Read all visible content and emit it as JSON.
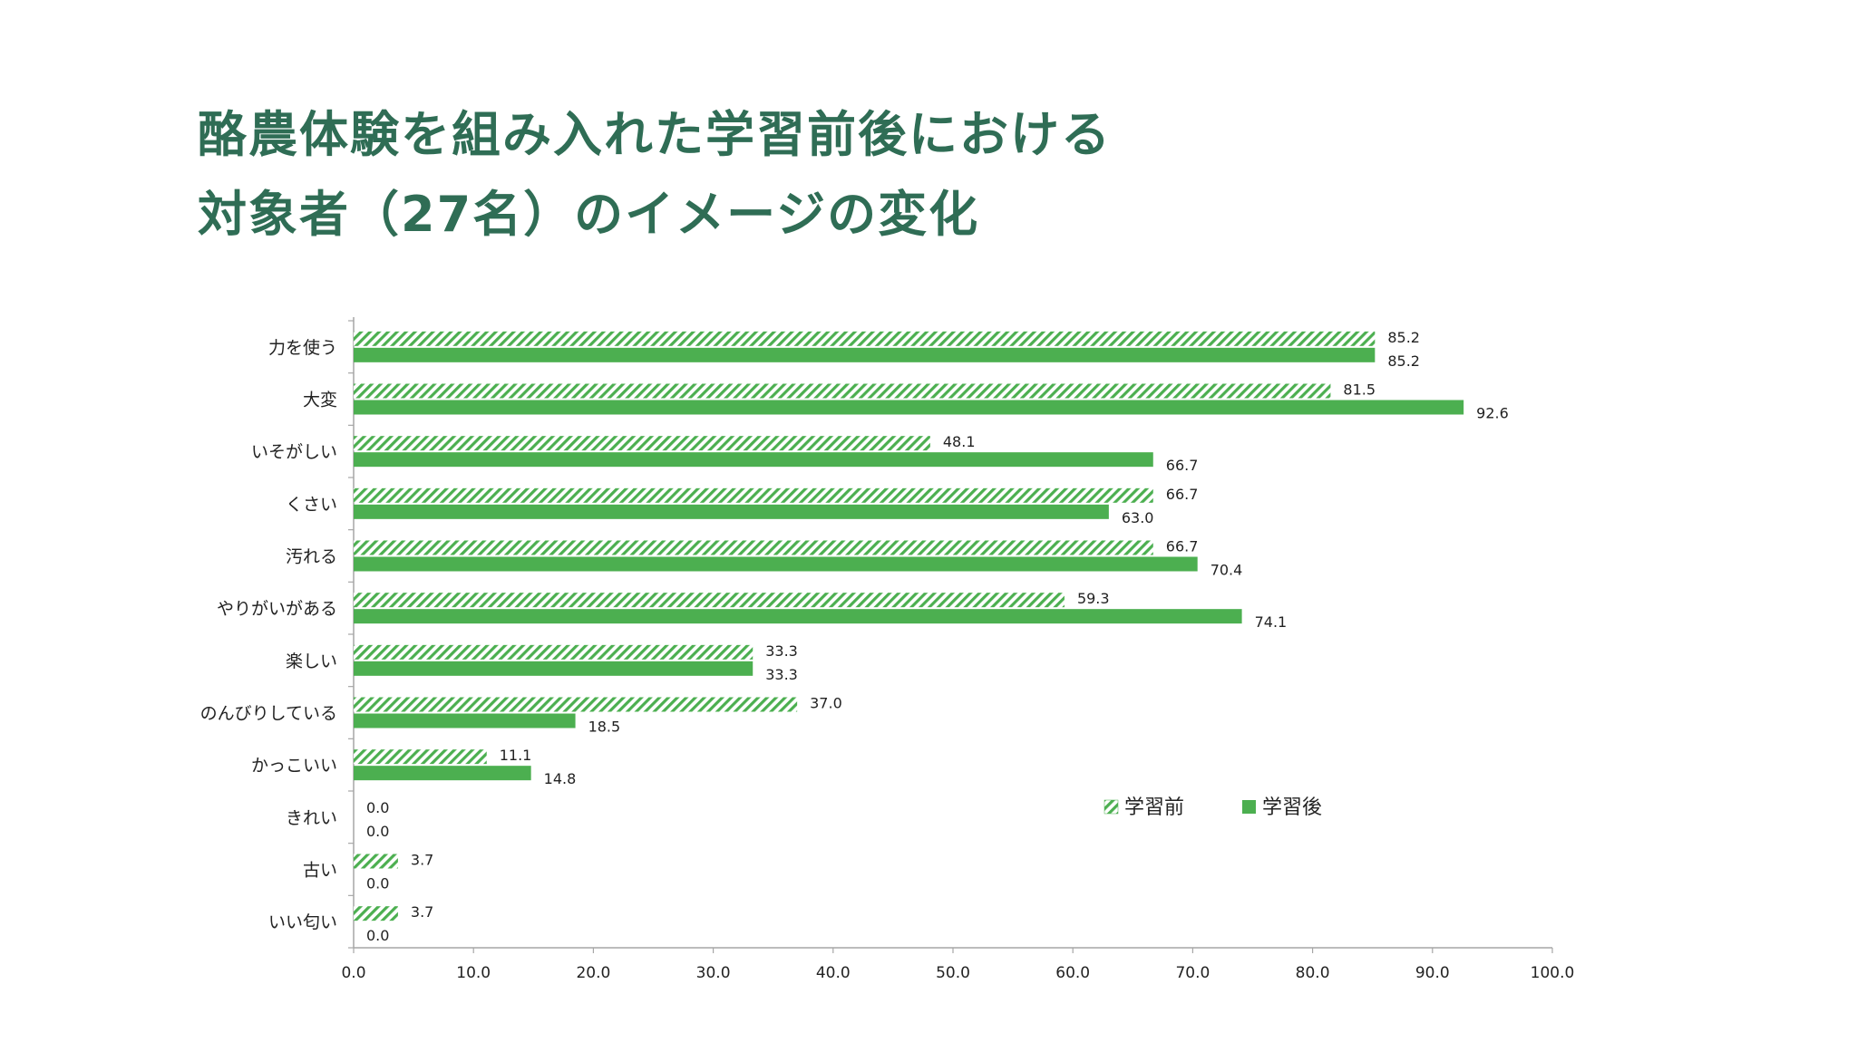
{
  "title": {
    "line1": "酪農体験を組み入れた学習前後における",
    "line2": "対象者（27名）のイメージの変化"
  },
  "colors": {
    "title": "#2f6d55",
    "after": "#4caf50",
    "before_hatch": "#4caf50",
    "before_bg": "#ffffff",
    "axis": "#a6a6a6",
    "text": "#222222"
  },
  "chart_data": {
    "type": "bar",
    "orientation": "horizontal",
    "categories": [
      "力を使う",
      "大変",
      "いそがしい",
      "くさい",
      "汚れる",
      "やりがいがある",
      "楽しい",
      "のんびりしている",
      "かっこいい",
      "きれい",
      "古い",
      "いい匂い"
    ],
    "series": [
      {
        "name": "学習前",
        "style": "hatched",
        "values": [
          85.2,
          81.5,
          48.1,
          66.7,
          66.7,
          59.3,
          33.3,
          37.0,
          11.1,
          0.0,
          3.7,
          3.7
        ],
        "labels": [
          "85.2",
          "81.5",
          "48.1",
          "66.7",
          "66.7",
          "59.3",
          "33.3",
          "37.0",
          "11.1",
          "0.0",
          "3.7",
          "3.7"
        ]
      },
      {
        "name": "学習後",
        "style": "solid",
        "values": [
          85.2,
          92.6,
          66.7,
          63.0,
          70.4,
          74.1,
          33.3,
          18.5,
          14.8,
          0.0,
          0.0,
          0.0
        ],
        "labels": [
          "85.2",
          "92.6",
          "66.7",
          "63.0",
          "70.4",
          "74.1",
          "33.3",
          "18.5",
          "14.8",
          "0.0",
          "0.0",
          "0.0"
        ]
      }
    ],
    "xlim": [
      0,
      100
    ],
    "ticks": [
      "0.0",
      "10.0",
      "20.0",
      "30.0",
      "40.0",
      "50.0",
      "60.0",
      "70.0",
      "80.0",
      "90.0",
      "100.0"
    ],
    "grid": false,
    "legend_position": "right"
  }
}
